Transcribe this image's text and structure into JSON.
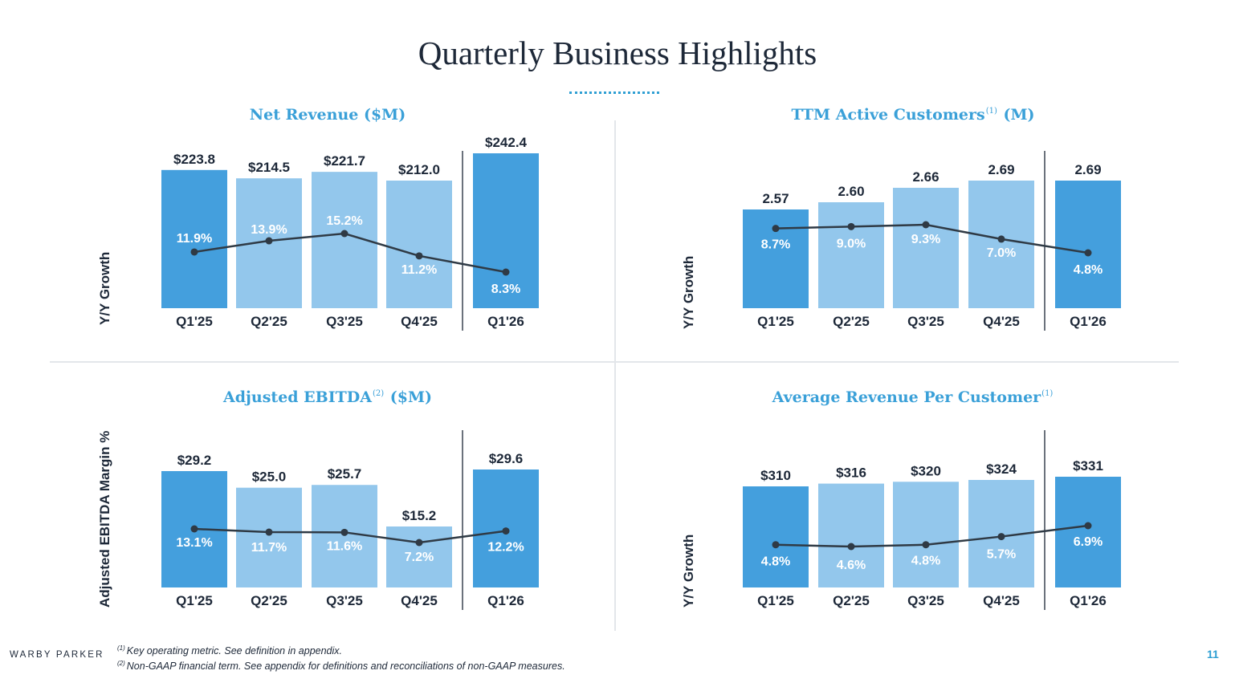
{
  "page": {
    "title": "Quarterly Business Highlights",
    "brand": "WARBY PARKER",
    "page_number": "11",
    "footnote_1_mark": "(1)",
    "footnote_1": "Key operating metric. See definition in appendix.",
    "footnote_2_mark": "(2)",
    "footnote_2": "Non-GAAP financial term. See appendix for definitions and reconciliations of non-GAAP measures."
  },
  "colors": {
    "dark_bar": "#449fdd",
    "light_bar": "#93c7ec",
    "line": "#2f3a45",
    "title_blue": "#3aa0d8",
    "text": "#1d2838"
  },
  "charts": {
    "net_revenue": {
      "title": "Net Revenue ($M)",
      "title_sup": "",
      "title_suffix": "",
      "side_label": "Y/Y Growth"
    },
    "ttm_active": {
      "title": "TTM Active Customers",
      "title_sup": "(1)",
      "title_suffix": "(M)",
      "side_label": "Y/Y Growth"
    },
    "adj_ebitda": {
      "title": "Adjusted EBITDA",
      "title_sup": "(2)",
      "title_suffix": "($M)",
      "side_label": "Adjusted EBITDA Margin %"
    },
    "arpc": {
      "title": "Average Revenue Per Customer",
      "title_sup": "(1)",
      "title_suffix": "",
      "side_label": "Y/Y Growth"
    }
  },
  "chart_data": [
    {
      "id": "net_revenue",
      "type": "bar",
      "title": "Net Revenue ($M)",
      "categories": [
        "Q1'25",
        "Q2'25",
        "Q3'25",
        "Q4'25",
        "Q1'26"
      ],
      "values": [
        223.8,
        214.5,
        221.7,
        212.0,
        242.4
      ],
      "value_labels": [
        "$223.8",
        "$214.5",
        "$221.7",
        "$212.0",
        "$242.4"
      ],
      "line_series": {
        "values": [
          11.9,
          13.9,
          15.2,
          11.2,
          8.3
        ],
        "labels": [
          "11.9%",
          "13.9%",
          "15.2%",
          "11.2%",
          "8.3%"
        ]
      },
      "ylabel": "Y/Y Growth",
      "highlight": [
        true,
        false,
        false,
        false,
        true
      ]
    },
    {
      "id": "ttm_active",
      "type": "bar",
      "title": "TTM Active Customers(1) (M)",
      "categories": [
        "Q1'25",
        "Q2'25",
        "Q3'25",
        "Q4'25",
        "Q1'26"
      ],
      "values": [
        2.57,
        2.6,
        2.66,
        2.69,
        2.69
      ],
      "value_labels": [
        "2.57",
        "2.60",
        "2.66",
        "2.69",
        "2.69"
      ],
      "line_series": {
        "values": [
          8.7,
          9.0,
          9.3,
          7.0,
          4.8
        ],
        "labels": [
          "8.7%",
          "9.0%",
          "9.3%",
          "7.0%",
          "4.8%"
        ]
      },
      "ylabel": "Y/Y Growth",
      "highlight": [
        true,
        false,
        false,
        false,
        true
      ]
    },
    {
      "id": "adj_ebitda",
      "type": "bar",
      "title": "Adjusted EBITDA(2) ($M)",
      "categories": [
        "Q1'25",
        "Q2'25",
        "Q3'25",
        "Q4'25",
        "Q1'26"
      ],
      "values": [
        29.2,
        25.0,
        25.7,
        15.2,
        29.6
      ],
      "value_labels": [
        "$29.2",
        "$25.0",
        "$25.7",
        "$15.2",
        "$29.6"
      ],
      "line_series": {
        "values": [
          13.1,
          11.7,
          11.6,
          7.2,
          12.2
        ],
        "labels": [
          "13.1%",
          "11.7%",
          "11.6%",
          "7.2%",
          "12.2%"
        ]
      },
      "ylabel": "Adjusted EBITDA Margin %",
      "highlight": [
        true,
        false,
        false,
        false,
        true
      ]
    },
    {
      "id": "arpc",
      "type": "bar",
      "title": "Average Revenue Per Customer(1)",
      "categories": [
        "Q1'25",
        "Q2'25",
        "Q3'25",
        "Q4'25",
        "Q1'26"
      ],
      "values": [
        310,
        316,
        320,
        324,
        331
      ],
      "value_labels": [
        "$310",
        "$316",
        "$320",
        "$324",
        "$331"
      ],
      "line_series": {
        "values": [
          4.8,
          4.6,
          4.8,
          5.7,
          6.9
        ],
        "labels": [
          "4.8%",
          "4.6%",
          "4.8%",
          "5.7%",
          "6.9%"
        ]
      },
      "ylabel": "Y/Y Growth",
      "highlight": [
        true,
        false,
        false,
        false,
        true
      ]
    }
  ]
}
